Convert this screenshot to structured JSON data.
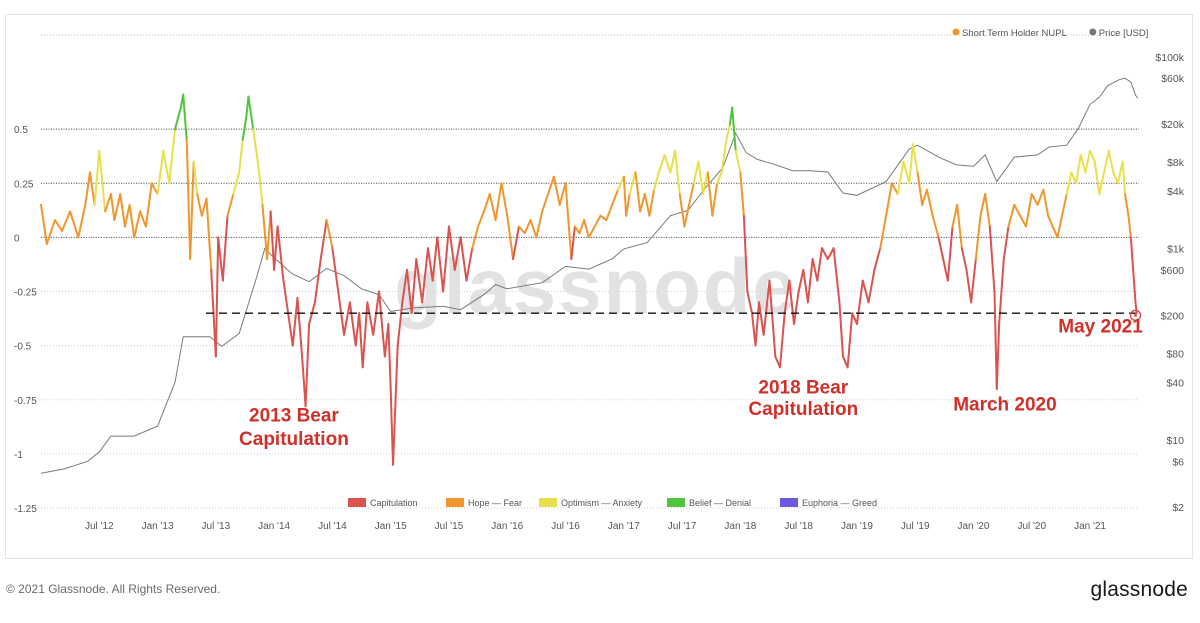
{
  "chart_data": {
    "type": "line",
    "title": "",
    "legend_top": [
      {
        "label": "Short Term Holder NUPL",
        "color": "#f0962c"
      },
      {
        "label": "Price [USD]",
        "color": "#777777"
      }
    ],
    "legend_bottom": [
      {
        "label": "Capitulation",
        "color": "#d9534f"
      },
      {
        "label": "Hope — Fear",
        "color": "#f0962c"
      },
      {
        "label": "Optimism — Anxiety",
        "color": "#e8e04a"
      },
      {
        "label": "Belief — Denial",
        "color": "#4fc53a"
      },
      {
        "label": "Euphoria — Greed",
        "color": "#6a5adf"
      }
    ],
    "x_ticks": [
      "Jul '12",
      "Jan '13",
      "Jul '13",
      "Jan '14",
      "Jul '14",
      "Jan '15",
      "Jul '15",
      "Jan '16",
      "Jul '16",
      "Jan '17",
      "Jul '17",
      "Jan '18",
      "Jul '18",
      "Jan '19",
      "Jul '19",
      "Jan '20",
      "Jul '20",
      "Jan '21"
    ],
    "x_range": [
      2012.0,
      2021.42
    ],
    "y_left": {
      "ticks": [
        {
          "v": 0.5,
          "label": "0.5"
        },
        {
          "v": 0.25,
          "label": "0.25"
        },
        {
          "v": 0,
          "label": "0"
        },
        {
          "v": -0.25,
          "label": "-0.25"
        },
        {
          "v": -0.5,
          "label": "-0.5"
        },
        {
          "v": -0.75,
          "label": "-0.75"
        },
        {
          "v": -1,
          "label": "-1"
        },
        {
          "v": -1.25,
          "label": "-1.25"
        }
      ],
      "range": [
        -1.25,
        0.75
      ]
    },
    "y_right": {
      "scale": "log",
      "ticks": [
        {
          "v": 100000,
          "label": "$100k"
        },
        {
          "v": 60000,
          "label": "$60k"
        },
        {
          "v": 20000,
          "label": "$20k"
        },
        {
          "v": 8000,
          "label": "$8k"
        },
        {
          "v": 4000,
          "label": "$4k"
        },
        {
          "v": 1000,
          "label": "$1k"
        },
        {
          "v": 600,
          "label": "$600"
        },
        {
          "v": 200,
          "label": "$200"
        },
        {
          "v": 80,
          "label": "$80"
        },
        {
          "v": 40,
          "label": "$40"
        },
        {
          "v": 10,
          "label": "$10"
        },
        {
          "v": 6,
          "label": "$6"
        },
        {
          "v": 2,
          "label": "$2"
        }
      ],
      "range": [
        2,
        100000
      ]
    },
    "thresholds": {
      "belief": 0.5,
      "optimism": 0.25,
      "hope": 0
    },
    "reference_line": -0.35,
    "watermark": "glassnode",
    "nupl_series": [
      [
        2012.0,
        0.15
      ],
      [
        2012.05,
        -0.03
      ],
      [
        2012.12,
        0.08
      ],
      [
        2012.18,
        0.03
      ],
      [
        2012.25,
        0.12
      ],
      [
        2012.32,
        0.0
      ],
      [
        2012.38,
        0.15
      ],
      [
        2012.42,
        0.3
      ],
      [
        2012.46,
        0.15
      ],
      [
        2012.5,
        0.4
      ],
      [
        2012.55,
        0.12
      ],
      [
        2012.6,
        0.2
      ],
      [
        2012.63,
        0.08
      ],
      [
        2012.68,
        0.2
      ],
      [
        2012.72,
        0.05
      ],
      [
        2012.76,
        0.15
      ],
      [
        2012.8,
        0.0
      ],
      [
        2012.85,
        0.12
      ],
      [
        2012.9,
        0.05
      ],
      [
        2012.95,
        0.25
      ],
      [
        2013.0,
        0.2
      ],
      [
        2013.05,
        0.4
      ],
      [
        2013.1,
        0.25
      ],
      [
        2013.15,
        0.5
      ],
      [
        2013.2,
        0.6
      ],
      [
        2013.22,
        0.66
      ],
      [
        2013.25,
        0.45
      ],
      [
        2013.28,
        -0.1
      ],
      [
        2013.31,
        0.35
      ],
      [
        2013.34,
        0.2
      ],
      [
        2013.38,
        0.1
      ],
      [
        2013.42,
        0.18
      ],
      [
        2013.46,
        -0.15
      ],
      [
        2013.5,
        -0.55
      ],
      [
        2013.52,
        0.0
      ],
      [
        2013.56,
        -0.2
      ],
      [
        2013.6,
        0.1
      ],
      [
        2013.65,
        0.2
      ],
      [
        2013.7,
        0.3
      ],
      [
        2013.73,
        0.45
      ],
      [
        2013.76,
        0.55
      ],
      [
        2013.78,
        0.65
      ],
      [
        2013.82,
        0.5
      ],
      [
        2013.86,
        0.35
      ],
      [
        2013.9,
        0.15
      ],
      [
        2013.94,
        -0.1
      ],
      [
        2013.97,
        0.12
      ],
      [
        2014.0,
        -0.15
      ],
      [
        2014.03,
        0.05
      ],
      [
        2014.08,
        -0.2
      ],
      [
        2014.12,
        -0.35
      ],
      [
        2014.16,
        -0.5
      ],
      [
        2014.2,
        -0.28
      ],
      [
        2014.24,
        -0.55
      ],
      [
        2014.27,
        -0.78
      ],
      [
        2014.3,
        -0.4
      ],
      [
        2014.35,
        -0.3
      ],
      [
        2014.4,
        -0.1
      ],
      [
        2014.45,
        0.08
      ],
      [
        2014.5,
        -0.05
      ],
      [
        2014.55,
        -0.25
      ],
      [
        2014.6,
        -0.45
      ],
      [
        2014.65,
        -0.3
      ],
      [
        2014.7,
        -0.5
      ],
      [
        2014.73,
        -0.35
      ],
      [
        2014.76,
        -0.6
      ],
      [
        2014.8,
        -0.3
      ],
      [
        2014.85,
        -0.45
      ],
      [
        2014.9,
        -0.25
      ],
      [
        2014.95,
        -0.55
      ],
      [
        2014.98,
        -0.4
      ],
      [
        2015.0,
        -0.7
      ],
      [
        2015.02,
        -1.05
      ],
      [
        2015.06,
        -0.5
      ],
      [
        2015.1,
        -0.3
      ],
      [
        2015.14,
        -0.15
      ],
      [
        2015.18,
        -0.35
      ],
      [
        2015.22,
        -0.1
      ],
      [
        2015.27,
        -0.3
      ],
      [
        2015.32,
        -0.05
      ],
      [
        2015.36,
        -0.2
      ],
      [
        2015.4,
        0.0
      ],
      [
        2015.45,
        -0.25
      ],
      [
        2015.5,
        0.05
      ],
      [
        2015.55,
        -0.15
      ],
      [
        2015.6,
        0.0
      ],
      [
        2015.65,
        -0.2
      ],
      [
        2015.7,
        -0.05
      ],
      [
        2015.75,
        0.05
      ],
      [
        2015.8,
        0.12
      ],
      [
        2015.85,
        0.2
      ],
      [
        2015.9,
        0.08
      ],
      [
        2015.95,
        0.25
      ],
      [
        2016.0,
        0.1
      ],
      [
        2016.05,
        -0.1
      ],
      [
        2016.1,
        0.05
      ],
      [
        2016.15,
        0.02
      ],
      [
        2016.2,
        0.08
      ],
      [
        2016.25,
        0.0
      ],
      [
        2016.3,
        0.12
      ],
      [
        2016.35,
        0.2
      ],
      [
        2016.4,
        0.28
      ],
      [
        2016.45,
        0.15
      ],
      [
        2016.5,
        0.25
      ],
      [
        2016.55,
        -0.1
      ],
      [
        2016.58,
        0.05
      ],
      [
        2016.62,
        0.02
      ],
      [
        2016.66,
        0.08
      ],
      [
        2016.7,
        0.0
      ],
      [
        2016.75,
        0.05
      ],
      [
        2016.8,
        0.1
      ],
      [
        2016.85,
        0.08
      ],
      [
        2016.9,
        0.15
      ],
      [
        2016.95,
        0.22
      ],
      [
        2017.0,
        0.28
      ],
      [
        2017.02,
        0.1
      ],
      [
        2017.05,
        0.2
      ],
      [
        2017.1,
        0.3
      ],
      [
        2017.14,
        0.12
      ],
      [
        2017.18,
        0.2
      ],
      [
        2017.22,
        0.1
      ],
      [
        2017.26,
        0.22
      ],
      [
        2017.3,
        0.3
      ],
      [
        2017.35,
        0.38
      ],
      [
        2017.4,
        0.3
      ],
      [
        2017.44,
        0.4
      ],
      [
        2017.48,
        0.2
      ],
      [
        2017.52,
        0.05
      ],
      [
        2017.56,
        0.15
      ],
      [
        2017.6,
        0.25
      ],
      [
        2017.64,
        0.35
      ],
      [
        2017.68,
        0.2
      ],
      [
        2017.72,
        0.3
      ],
      [
        2017.76,
        0.1
      ],
      [
        2017.8,
        0.25
      ],
      [
        2017.84,
        0.3
      ],
      [
        2017.88,
        0.45
      ],
      [
        2017.91,
        0.52
      ],
      [
        2017.93,
        0.6
      ],
      [
        2017.96,
        0.4
      ],
      [
        2018.0,
        0.3
      ],
      [
        2018.03,
        0.1
      ],
      [
        2018.06,
        -0.25
      ],
      [
        2018.1,
        -0.35
      ],
      [
        2018.13,
        -0.5
      ],
      [
        2018.16,
        -0.3
      ],
      [
        2018.2,
        -0.45
      ],
      [
        2018.25,
        -0.2
      ],
      [
        2018.3,
        -0.55
      ],
      [
        2018.34,
        -0.6
      ],
      [
        2018.38,
        -0.35
      ],
      [
        2018.42,
        -0.2
      ],
      [
        2018.46,
        -0.4
      ],
      [
        2018.5,
        -0.25
      ],
      [
        2018.54,
        -0.15
      ],
      [
        2018.58,
        -0.3
      ],
      [
        2018.62,
        -0.1
      ],
      [
        2018.66,
        -0.2
      ],
      [
        2018.7,
        -0.05
      ],
      [
        2018.75,
        -0.1
      ],
      [
        2018.8,
        -0.05
      ],
      [
        2018.85,
        -0.3
      ],
      [
        2018.88,
        -0.55
      ],
      [
        2018.92,
        -0.6
      ],
      [
        2018.96,
        -0.35
      ],
      [
        2019.0,
        -0.4
      ],
      [
        2019.05,
        -0.2
      ],
      [
        2019.1,
        -0.3
      ],
      [
        2019.15,
        -0.15
      ],
      [
        2019.2,
        -0.05
      ],
      [
        2019.25,
        0.1
      ],
      [
        2019.3,
        0.25
      ],
      [
        2019.35,
        0.2
      ],
      [
        2019.4,
        0.35
      ],
      [
        2019.45,
        0.25
      ],
      [
        2019.48,
        0.43
      ],
      [
        2019.52,
        0.3
      ],
      [
        2019.56,
        0.15
      ],
      [
        2019.6,
        0.22
      ],
      [
        2019.65,
        0.1
      ],
      [
        2019.7,
        0.0
      ],
      [
        2019.74,
        -0.1
      ],
      [
        2019.78,
        -0.2
      ],
      [
        2019.82,
        0.05
      ],
      [
        2019.86,
        0.15
      ],
      [
        2019.9,
        -0.05
      ],
      [
        2019.94,
        -0.15
      ],
      [
        2019.98,
        -0.3
      ],
      [
        2020.02,
        -0.1
      ],
      [
        2020.06,
        0.1
      ],
      [
        2020.1,
        0.2
      ],
      [
        2020.14,
        0.05
      ],
      [
        2020.18,
        -0.25
      ],
      [
        2020.2,
        -0.7
      ],
      [
        2020.22,
        -0.4
      ],
      [
        2020.26,
        -0.1
      ],
      [
        2020.3,
        0.05
      ],
      [
        2020.35,
        0.15
      ],
      [
        2020.4,
        0.1
      ],
      [
        2020.45,
        0.05
      ],
      [
        2020.5,
        0.2
      ],
      [
        2020.55,
        0.15
      ],
      [
        2020.6,
        0.22
      ],
      [
        2020.64,
        0.1
      ],
      [
        2020.68,
        0.05
      ],
      [
        2020.72,
        0.0
      ],
      [
        2020.76,
        0.1
      ],
      [
        2020.8,
        0.2
      ],
      [
        2020.84,
        0.3
      ],
      [
        2020.88,
        0.25
      ],
      [
        2020.92,
        0.38
      ],
      [
        2020.96,
        0.3
      ],
      [
        2021.0,
        0.4
      ],
      [
        2021.04,
        0.35
      ],
      [
        2021.08,
        0.2
      ],
      [
        2021.12,
        0.3
      ],
      [
        2021.16,
        0.4
      ],
      [
        2021.2,
        0.3
      ],
      [
        2021.24,
        0.25
      ],
      [
        2021.28,
        0.35
      ],
      [
        2021.3,
        0.2
      ],
      [
        2021.33,
        0.1
      ],
      [
        2021.35,
        0.0
      ],
      [
        2021.37,
        -0.15
      ],
      [
        2021.39,
        -0.3
      ],
      [
        2021.4,
        -0.35
      ]
    ],
    "price_series": [
      [
        2012.0,
        4.5
      ],
      [
        2012.2,
        5
      ],
      [
        2012.4,
        6
      ],
      [
        2012.5,
        7.5
      ],
      [
        2012.6,
        11
      ],
      [
        2012.8,
        11
      ],
      [
        2013.0,
        14
      ],
      [
        2013.15,
        40
      ],
      [
        2013.22,
        120
      ],
      [
        2013.3,
        120
      ],
      [
        2013.45,
        120
      ],
      [
        2013.55,
        95
      ],
      [
        2013.7,
        130
      ],
      [
        2013.85,
        500
      ],
      [
        2013.92,
        1000
      ],
      [
        2014.0,
        800
      ],
      [
        2014.15,
        550
      ],
      [
        2014.3,
        450
      ],
      [
        2014.45,
        620
      ],
      [
        2014.6,
        520
      ],
      [
        2014.75,
        380
      ],
      [
        2014.9,
        330
      ],
      [
        2015.0,
        220
      ],
      [
        2015.2,
        240
      ],
      [
        2015.45,
        250
      ],
      [
        2015.6,
        230
      ],
      [
        2015.8,
        330
      ],
      [
        2015.9,
        420
      ],
      [
        2016.0,
        380
      ],
      [
        2016.3,
        440
      ],
      [
        2016.5,
        650
      ],
      [
        2016.7,
        610
      ],
      [
        2016.9,
        780
      ],
      [
        2017.0,
        990
      ],
      [
        2017.2,
        1150
      ],
      [
        2017.4,
        2200
      ],
      [
        2017.55,
        2500
      ],
      [
        2017.7,
        4300
      ],
      [
        2017.85,
        7000
      ],
      [
        2017.96,
        16000
      ],
      [
        2018.05,
        10000
      ],
      [
        2018.15,
        8500
      ],
      [
        2018.3,
        7500
      ],
      [
        2018.45,
        6500
      ],
      [
        2018.6,
        6500
      ],
      [
        2018.75,
        6300
      ],
      [
        2018.88,
        3800
      ],
      [
        2019.0,
        3600
      ],
      [
        2019.25,
        5000
      ],
      [
        2019.45,
        11000
      ],
      [
        2019.52,
        12000
      ],
      [
        2019.7,
        9000
      ],
      [
        2019.85,
        7500
      ],
      [
        2020.0,
        7200
      ],
      [
        2020.1,
        9500
      ],
      [
        2020.2,
        5000
      ],
      [
        2020.35,
        9000
      ],
      [
        2020.55,
        9500
      ],
      [
        2020.65,
        11500
      ],
      [
        2020.8,
        12000
      ],
      [
        2020.9,
        18000
      ],
      [
        2021.0,
        32000
      ],
      [
        2021.08,
        38000
      ],
      [
        2021.15,
        50000
      ],
      [
        2021.25,
        58000
      ],
      [
        2021.3,
        60000
      ],
      [
        2021.35,
        55000
      ],
      [
        2021.39,
        40000
      ],
      [
        2021.41,
        37000
      ]
    ],
    "annotations": [
      {
        "text": "2013 Bear",
        "x": 2014.17,
        "v": -0.85
      },
      {
        "text": "Capitulation",
        "x": 2014.17,
        "v": -0.96
      },
      {
        "text": "2018 Bear",
        "x": 2018.54,
        "v": -0.72
      },
      {
        "text": "Capitulation",
        "x": 2018.54,
        "v": -0.82
      },
      {
        "text": "March 2020",
        "x": 2020.27,
        "v": -0.8
      },
      {
        "text": "May 2021",
        "x": 2021.09,
        "v": -0.44
      }
    ],
    "marker": {
      "x": 2021.39,
      "v": -0.36
    }
  },
  "footer": {
    "copyright": "© 2021 Glassnode. All Rights Reserved.",
    "brand": "glassnode"
  }
}
